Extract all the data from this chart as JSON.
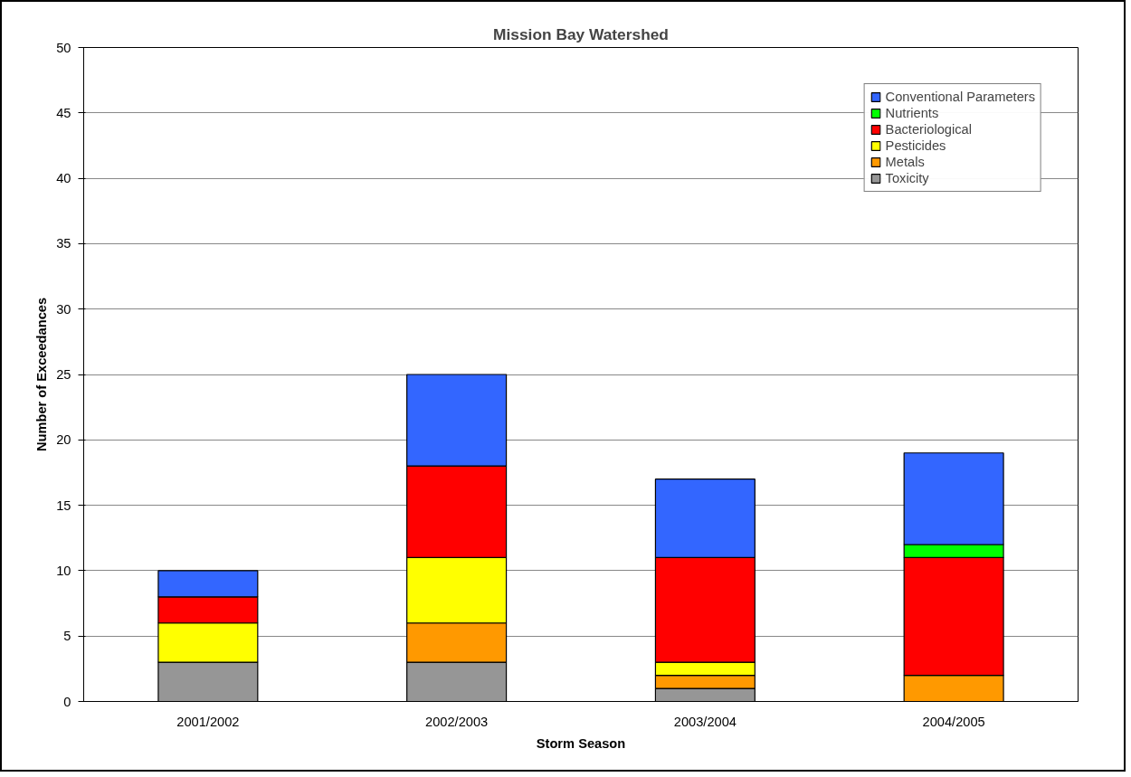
{
  "chart_data": {
    "type": "bar",
    "title": "Mission Bay Watershed",
    "xlabel": "Storm Season",
    "ylabel": "Number of Exceedances",
    "categories": [
      "2001/2002",
      "2002/2003",
      "2003/2004",
      "2004/2005"
    ],
    "stacked": true,
    "ylim": [
      0,
      50
    ],
    "yticks": [
      0,
      5,
      10,
      15,
      20,
      25,
      30,
      35,
      40,
      45,
      50
    ],
    "grid": "y",
    "legend": "top right",
    "series": [
      {
        "name": "Toxicity",
        "color": "#969696",
        "values": [
          3,
          3,
          1,
          0
        ]
      },
      {
        "name": "Metals",
        "color": "#ff9900",
        "values": [
          0,
          3,
          1,
          2
        ]
      },
      {
        "name": "Pesticides",
        "color": "#ffff00",
        "values": [
          3,
          5,
          1,
          0
        ]
      },
      {
        "name": "Bacteriological",
        "color": "#ff0000",
        "values": [
          2,
          7,
          8,
          9
        ]
      },
      {
        "name": "Nutrients",
        "color": "#00ff00",
        "values": [
          0,
          0,
          0,
          1
        ]
      },
      {
        "name": "Conventional Parameters",
        "color": "#3366ff",
        "values": [
          2,
          7,
          6,
          7
        ]
      }
    ]
  }
}
